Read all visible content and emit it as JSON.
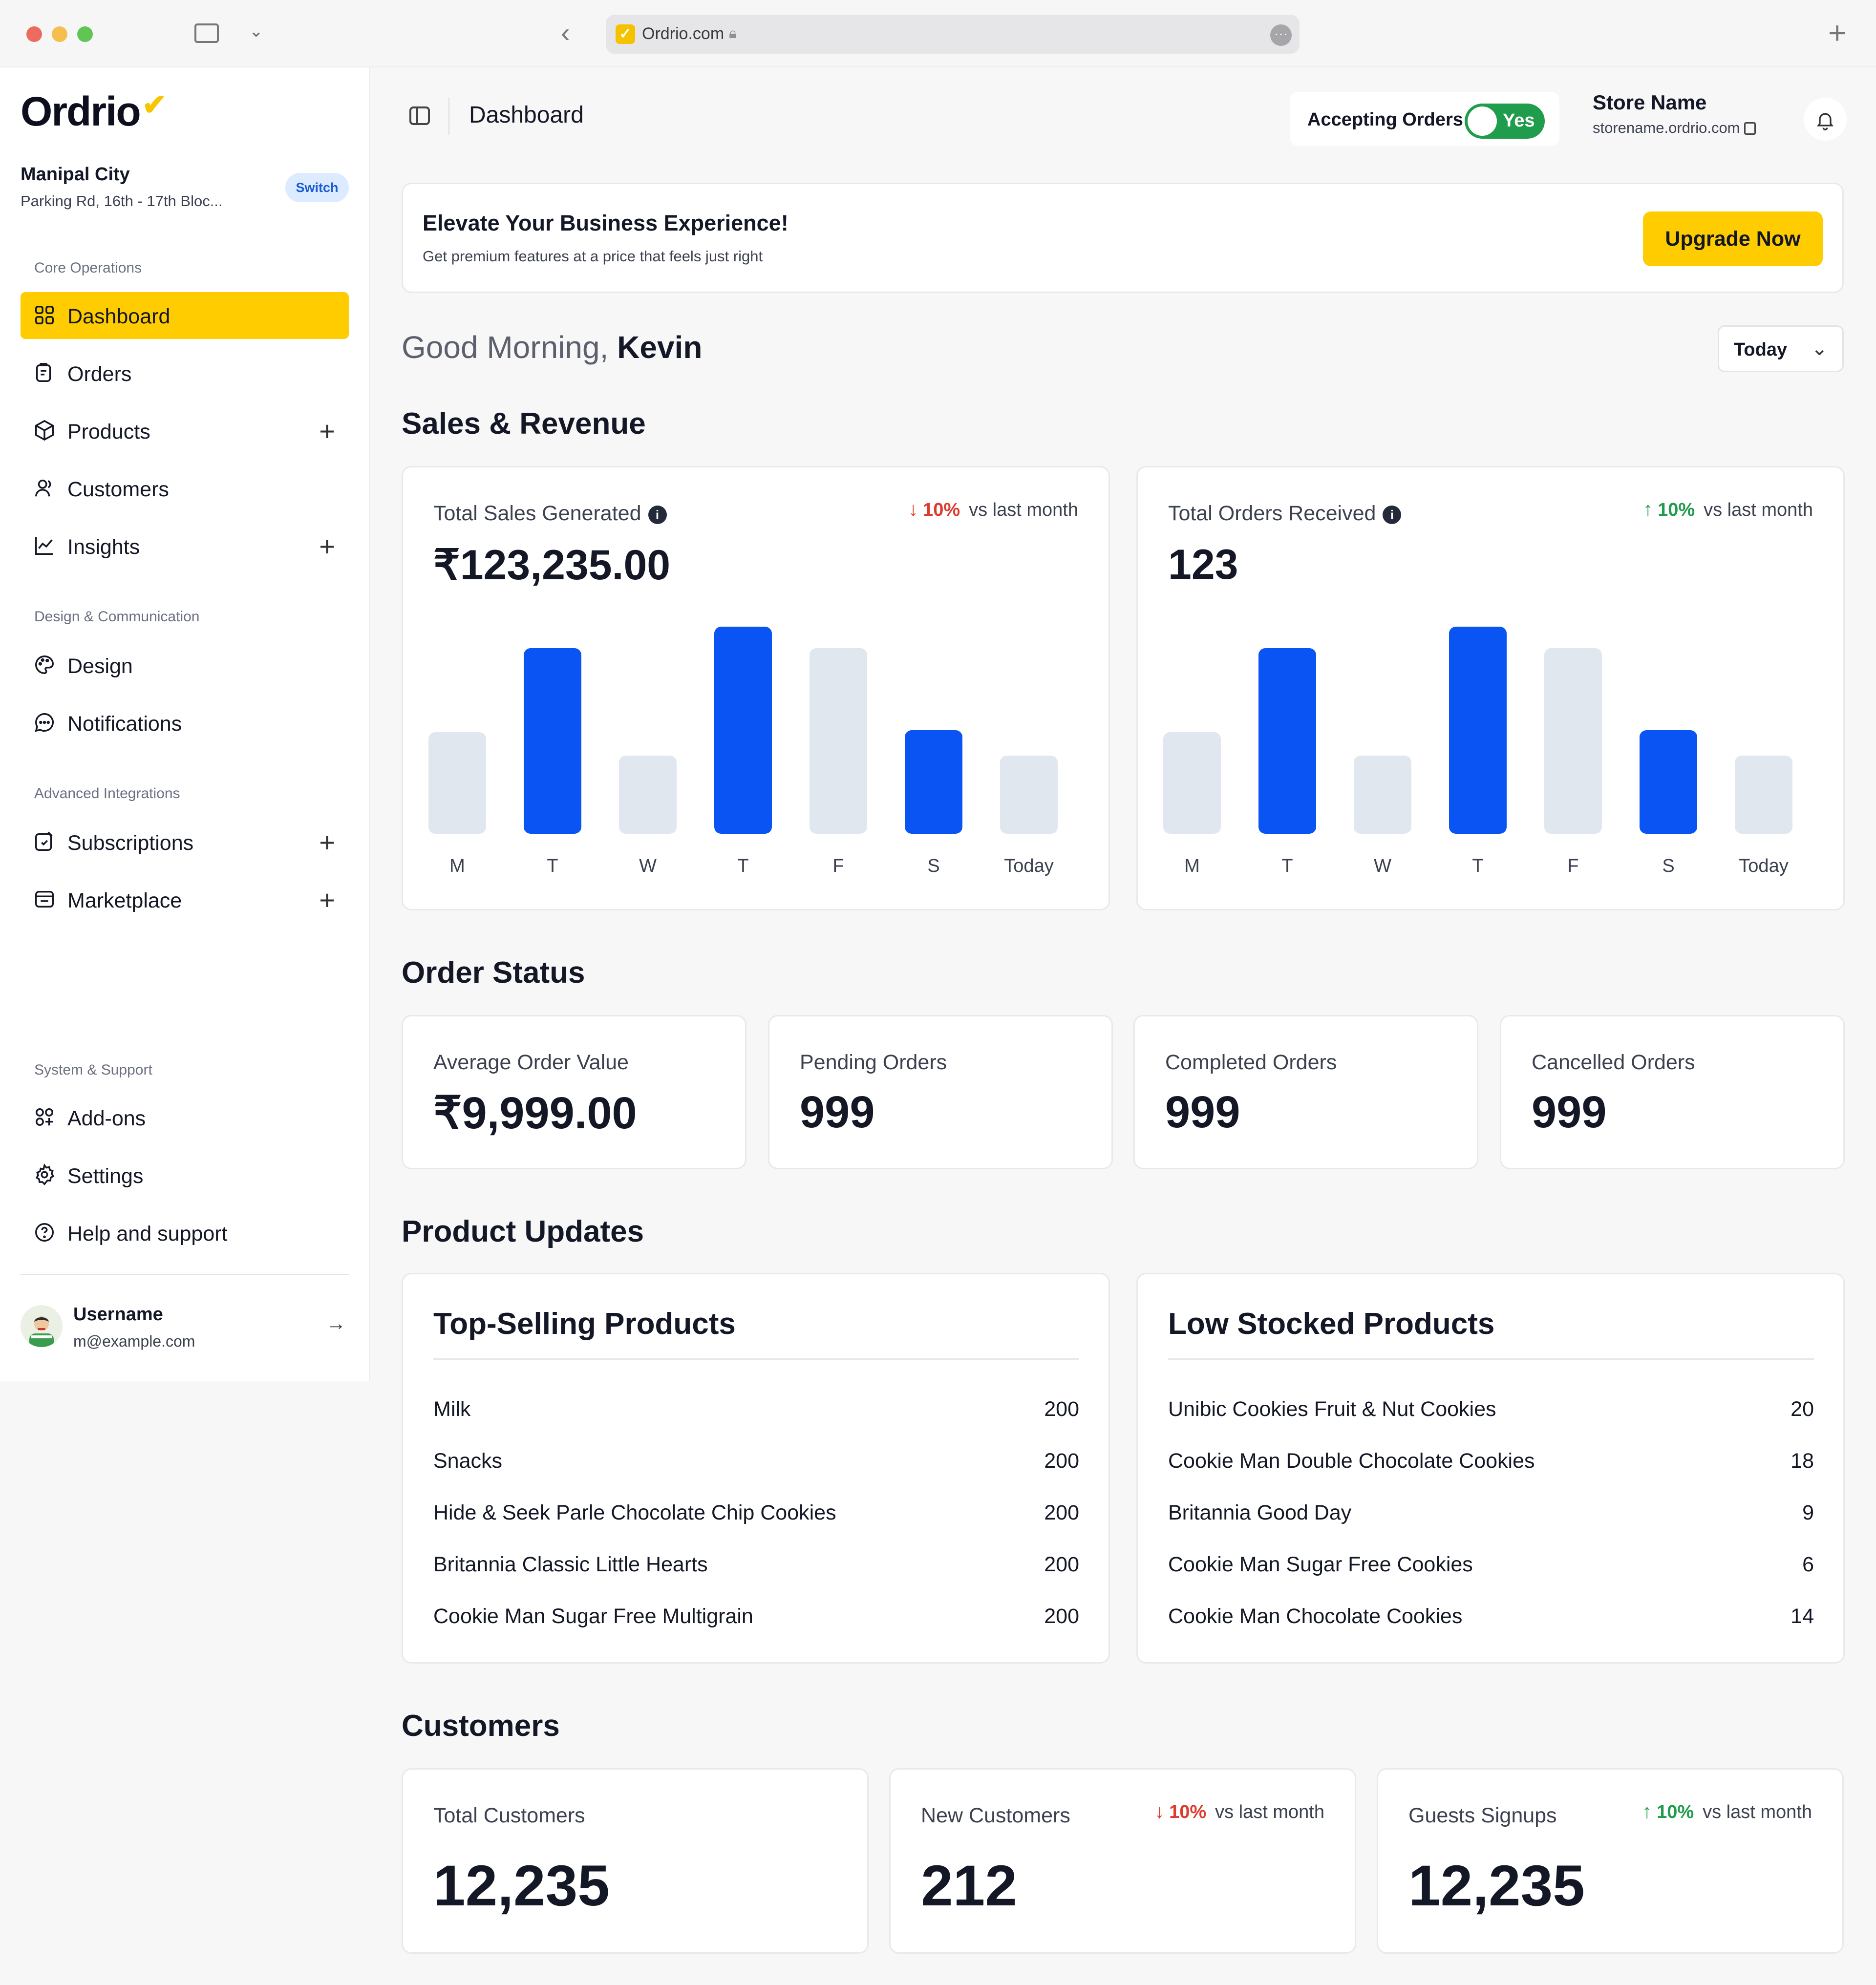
{
  "browser": {
    "url": "Ordrio.com"
  },
  "sidebar": {
    "logo": "Ordrio",
    "location_name": "Manipal City",
    "location_address": "Parking Rd, 16th - 17th Bloc...",
    "switch_label": "Switch",
    "sections": [
      {
        "label": "Core Operations"
      },
      {
        "label": "Design & Communication"
      },
      {
        "label": "Advanced Integrations"
      },
      {
        "label": "System & Support"
      }
    ],
    "items": [
      {
        "label": "Dashboard",
        "icon": "grid-icon",
        "active": true
      },
      {
        "label": "Orders",
        "icon": "clipboard-icon"
      },
      {
        "label": "Products",
        "icon": "box-icon",
        "expandable": true
      },
      {
        "label": "Customers",
        "icon": "users-icon"
      },
      {
        "label": "Insights",
        "icon": "line-chart-icon",
        "expandable": true
      },
      {
        "label": "Design",
        "icon": "palette-icon"
      },
      {
        "label": "Notifications",
        "icon": "message-icon"
      },
      {
        "label": "Subscriptions",
        "icon": "subscription-icon",
        "expandable": true
      },
      {
        "label": "Marketplace",
        "icon": "store-icon",
        "expandable": true
      },
      {
        "label": "Add-ons",
        "icon": "add-ons-icon"
      },
      {
        "label": "Settings",
        "icon": "gear-icon"
      },
      {
        "label": "Help and support",
        "icon": "help-icon"
      }
    ],
    "user": {
      "name": "Username",
      "email": "m@example.com"
    }
  },
  "header": {
    "title": "Dashboard",
    "accepting_label": "Accepting Orders",
    "accepting_value": "Yes",
    "store_name": "Store Name",
    "store_url": "storename.ordrio.com"
  },
  "promo": {
    "title": "Elevate Your Business Experience!",
    "subtitle": "Get premium features at a price that feels just right",
    "cta": "Upgrade Now"
  },
  "greeting": {
    "prefix": "Good Morning,",
    "name": "Kevin",
    "range": "Today"
  },
  "sections": {
    "sales": "Sales & Revenue",
    "order_status": "Order Status",
    "product_updates": "Product Updates",
    "customers": "Customers"
  },
  "sales_cards": [
    {
      "label": "Total Sales Generated",
      "value": "₹123,235.00",
      "trend_direction": "down",
      "trend_pct": "10%",
      "trend_text": "vs last month"
    },
    {
      "label": "Total Orders Received",
      "value": "123",
      "trend_direction": "up",
      "trend_pct": "10%",
      "trend_text": "vs last month"
    }
  ],
  "chart_data": [
    {
      "type": "bar",
      "categories": [
        "M",
        "T",
        "W",
        "T",
        "F",
        "S",
        "Today"
      ],
      "values": [
        52,
        95,
        40,
        106,
        95,
        53,
        40
      ],
      "highlighted": [
        false,
        true,
        false,
        true,
        false,
        true,
        false
      ],
      "colors": {
        "highlight": "#0a54f4",
        "muted": "#e1e7ef"
      },
      "ylim": [
        0,
        110
      ]
    },
    {
      "type": "bar",
      "categories": [
        "M",
        "T",
        "W",
        "T",
        "F",
        "S",
        "Today"
      ],
      "values": [
        52,
        95,
        40,
        106,
        95,
        53,
        40
      ],
      "highlighted": [
        false,
        true,
        false,
        true,
        false,
        true,
        false
      ],
      "colors": {
        "highlight": "#0a54f4",
        "muted": "#e1e7ef"
      },
      "ylim": [
        0,
        110
      ]
    }
  ],
  "order_status": [
    {
      "label": "Average Order Value",
      "value": "₹9,999.00"
    },
    {
      "label": "Pending Orders",
      "value": "999"
    },
    {
      "label": "Completed Orders",
      "value": "999"
    },
    {
      "label": "Cancelled Orders",
      "value": "999"
    }
  ],
  "top_selling": {
    "title": "Top-Selling Products",
    "rows": [
      {
        "name": "Milk",
        "qty": "200"
      },
      {
        "name": "Snacks",
        "qty": "200"
      },
      {
        "name": "Hide & Seek Parle Chocolate Chip Cookies",
        "qty": "200"
      },
      {
        "name": "Britannia Classic Little Hearts",
        "qty": "200"
      },
      {
        "name": "Cookie Man Sugar Free Multigrain",
        "qty": "200"
      }
    ]
  },
  "low_stock": {
    "title": "Low Stocked Products",
    "rows": [
      {
        "name": "Unibic Cookies Fruit & Nut Cookies",
        "qty": "20"
      },
      {
        "name": "Cookie Man Double Chocolate Cookies",
        "qty": "18"
      },
      {
        "name": "Britannia Good Day",
        "qty": "9"
      },
      {
        "name": "Cookie Man Sugar Free Cookies",
        "qty": "6"
      },
      {
        "name": "Cookie Man Chocolate Cookies",
        "qty": "14"
      }
    ]
  },
  "customer_cards": [
    {
      "label": "Total Customers",
      "value": "12,235"
    },
    {
      "label": "New Customers",
      "value": "212",
      "trend_direction": "down",
      "trend_pct": "10%",
      "trend_text": "vs last month"
    },
    {
      "label": "Guests Signups",
      "value": "12,235",
      "trend_direction": "up",
      "trend_pct": "10%",
      "trend_text": "vs last month"
    }
  ],
  "colors": {
    "accent": "#ffcc00",
    "primary_bar": "#0a54f4",
    "positive": "#1f9c4c",
    "negative": "#dc3b2f"
  }
}
